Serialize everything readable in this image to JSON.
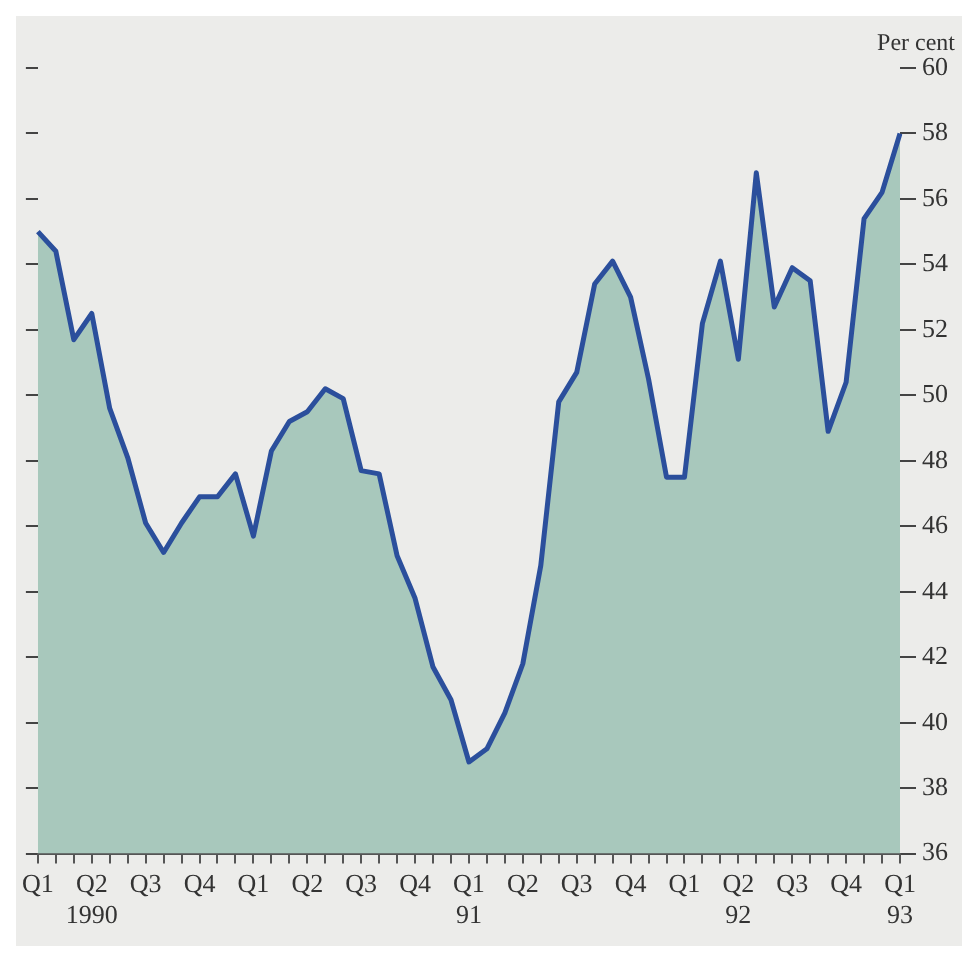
{
  "chart_data": {
    "type": "area",
    "ylabel": "Per cent",
    "categories": [
      "Q1",
      null,
      null,
      "Q2\n1990",
      null,
      null,
      "Q3",
      null,
      null,
      "Q4",
      null,
      null,
      "Q1",
      null,
      null,
      "Q2",
      null,
      null,
      "Q3",
      null,
      null,
      "Q4",
      null,
      null,
      "Q1\n91",
      null,
      null,
      "Q2",
      null,
      null,
      "Q3",
      null,
      null,
      "Q4",
      null,
      null,
      "Q1",
      null,
      null,
      "Q2\n92",
      null,
      null,
      "Q3",
      null,
      null,
      "Q4",
      null,
      null,
      "Q1\n93"
    ],
    "series": [
      {
        "color": "#2b4f9c",
        "values": [
          55.0,
          54.4,
          51.7,
          52.5,
          49.6,
          48.1,
          46.1,
          45.2,
          46.1,
          46.9,
          46.9,
          47.6,
          45.7,
          48.3,
          49.2,
          49.5,
          50.2,
          49.9,
          47.7,
          47.6,
          45.1,
          43.8,
          41.7,
          40.7,
          38.8,
          39.2,
          40.3,
          41.8,
          44.8,
          49.8,
          50.7,
          53.4,
          54.1,
          53.0,
          50.5,
          47.5,
          47.5,
          52.2,
          54.1,
          51.1,
          56.8,
          52.7,
          53.9,
          53.5,
          48.9,
          50.4,
          55.4,
          56.2,
          58.0
        ]
      }
    ],
    "ylim": [
      36,
      60
    ],
    "yticks": [
      36,
      38,
      40,
      42,
      44,
      46,
      48,
      50,
      52,
      54,
      56,
      58,
      60
    ],
    "grid": false,
    "legend": false,
    "marker": "none",
    "line_style": "solid"
  }
}
